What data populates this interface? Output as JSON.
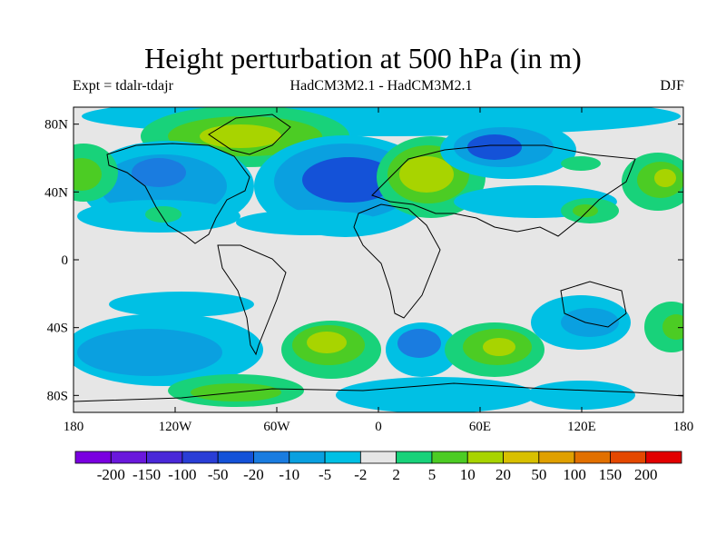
{
  "title": "Height perturbation at 500 hPa (in m)",
  "left_label": "Expt = tdalr-tdajr",
  "center_label": "HadCM3M2.1 - HadCM3M2.1",
  "right_label": "DJF",
  "map": {
    "lon_ticks": [
      {
        "value": -180,
        "label": "180"
      },
      {
        "value": -120,
        "label": "120W"
      },
      {
        "value": -60,
        "label": "60W"
      },
      {
        "value": 0,
        "label": "0"
      },
      {
        "value": 60,
        "label": "60E"
      },
      {
        "value": 120,
        "label": "120E"
      },
      {
        "value": 180,
        "label": "180"
      }
    ],
    "lat_ticks": [
      {
        "value": 80,
        "label": "80N"
      },
      {
        "value": 40,
        "label": "40N"
      },
      {
        "value": 0,
        "label": "0"
      },
      {
        "value": -40,
        "label": "40S"
      },
      {
        "value": -80,
        "label": "80S"
      }
    ]
  },
  "colorbar": {
    "colors": [
      "#7a00e0",
      "#6a18dc",
      "#4a28d8",
      "#2a3ed6",
      "#1452d8",
      "#1a7ce0",
      "#0aa0e0",
      "#00c0e4",
      "#e6e6e6",
      "#18d27a",
      "#4ccc24",
      "#a8d400",
      "#d8c000",
      "#e0a000",
      "#e27000",
      "#e44800",
      "#e20000"
    ],
    "labels": [
      "-200",
      "-150",
      "-100",
      "-50",
      "-20",
      "-10",
      "-5",
      "-2",
      "2",
      "5",
      "10",
      "20",
      "50",
      "100",
      "150",
      "200"
    ]
  }
}
